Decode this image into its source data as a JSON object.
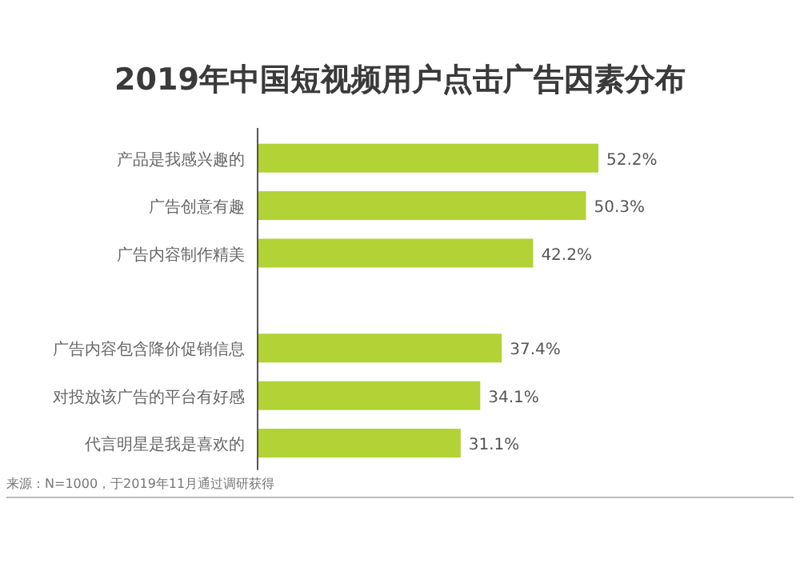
{
  "chart_data": {
    "type": "bar",
    "orientation": "horizontal",
    "title": "2019年中国短视频用户点击广告因素分布",
    "categories": [
      "产品是我感兴趣的",
      "广告创意有趣",
      "广告内容制作精美",
      null,
      "广告内容包含降价促销信息",
      "对投放该广告的平台有好感",
      "代言明星是我是喜欢的"
    ],
    "values": [
      52.2,
      50.3,
      42.2,
      null,
      37.4,
      34.1,
      31.1
    ],
    "value_labels": [
      "52.2%",
      "50.3%",
      "42.2%",
      null,
      "37.4%",
      "34.1%",
      "31.1%"
    ],
    "color": "#b2d235",
    "annotations": [
      "来源：N=1000，于2019年11月通过调研获得"
    ]
  }
}
